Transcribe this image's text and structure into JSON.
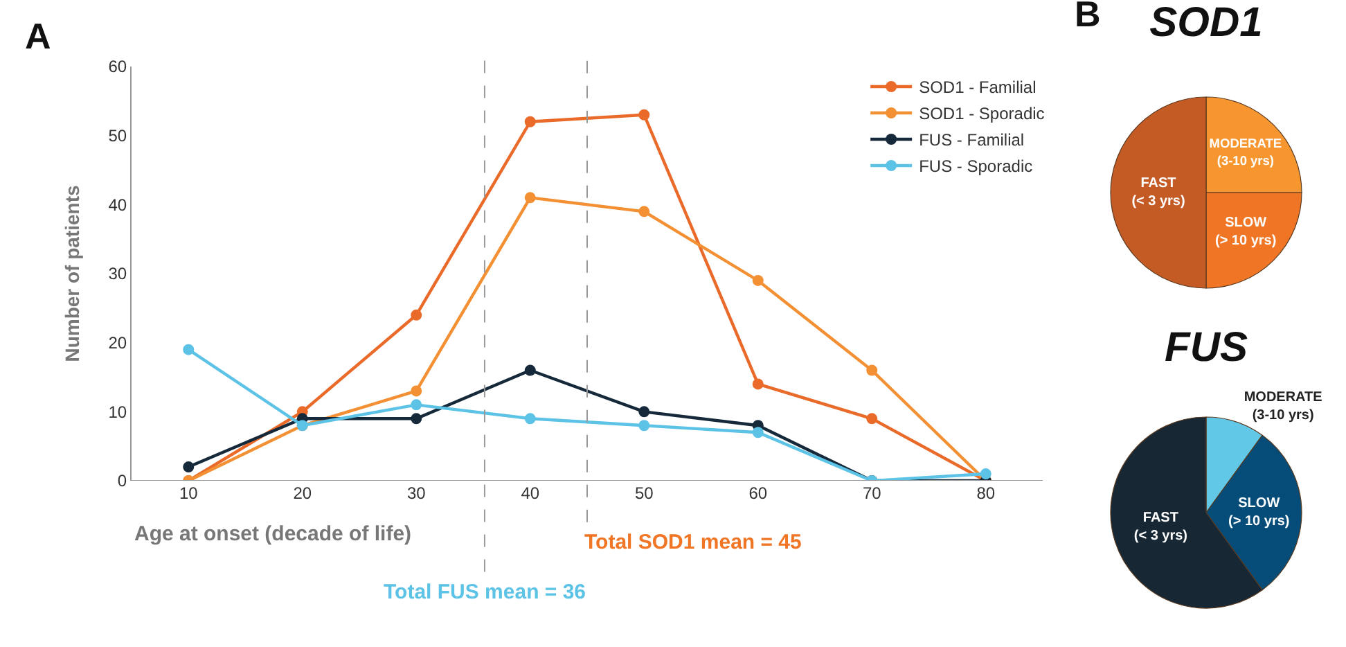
{
  "chart_data": [
    {
      "type": "line",
      "annotations": [
        "A"
      ],
      "xlabel": "Age at onset (decade of life)",
      "ylabel": "Number of patients",
      "x": [
        10,
        20,
        30,
        40,
        50,
        60,
        70,
        80
      ],
      "series": [
        {
          "name": "SOD1 - Familial",
          "color": "#ea6a2a",
          "values": [
            0,
            10,
            24,
            52,
            53,
            14,
            9,
            0
          ]
        },
        {
          "name": "SOD1 - Sporadic",
          "color": "#f39034",
          "values": [
            0,
            8,
            13,
            41,
            39,
            29,
            16,
            0
          ]
        },
        {
          "name": "FUS - Familial",
          "color": "#15293a",
          "values": [
            2,
            9,
            9,
            16,
            10,
            8,
            0,
            0
          ]
        },
        {
          "name": "FUS - Sporadic",
          "color": "#5cc3e6",
          "values": [
            19,
            8,
            11,
            9,
            8,
            7,
            0,
            1
          ]
        }
      ],
      "xlim": [
        5,
        85
      ],
      "xticks": [
        10,
        20,
        30,
        40,
        50,
        60,
        70,
        80
      ],
      "ylim": [
        0,
        60
      ],
      "yticks": [
        0,
        10,
        20,
        30,
        40,
        50,
        60
      ],
      "ref_lines": [
        {
          "axis": "x",
          "value": 36,
          "label": "Total FUS mean = 36",
          "color": "#999999",
          "line_style": "dashed"
        },
        {
          "axis": "x",
          "value": 45,
          "label": "Total SOD1 mean = 45",
          "color": "#999999",
          "line_style": "dashed"
        }
      ],
      "grid": false,
      "legend": "top right",
      "marker": "circle",
      "line_style": "solid"
    },
    {
      "type": "pie",
      "title": "SOD1",
      "annotations": [
        "B"
      ],
      "categories": [
        "MODERATE\n(3-10 yrs)",
        "SLOW\n(> 10 yrs)",
        "FAST\n(< 3 yrs)"
      ],
      "values": [
        25,
        25,
        50
      ],
      "colors": [
        "#f7962f",
        "#f07524",
        "#c45a24"
      ],
      "legend": false
    },
    {
      "type": "pie",
      "title": "FUS",
      "categories": [
        "MODERATE\n(3-10 yrs)",
        "SLOW\n(> 10 yrs)",
        "FAST\n(< 3 yrs)"
      ],
      "values": [
        10,
        30,
        60
      ],
      "colors": [
        "#62c8e8",
        "#054c78",
        "#172733"
      ],
      "legend": false
    }
  ]
}
